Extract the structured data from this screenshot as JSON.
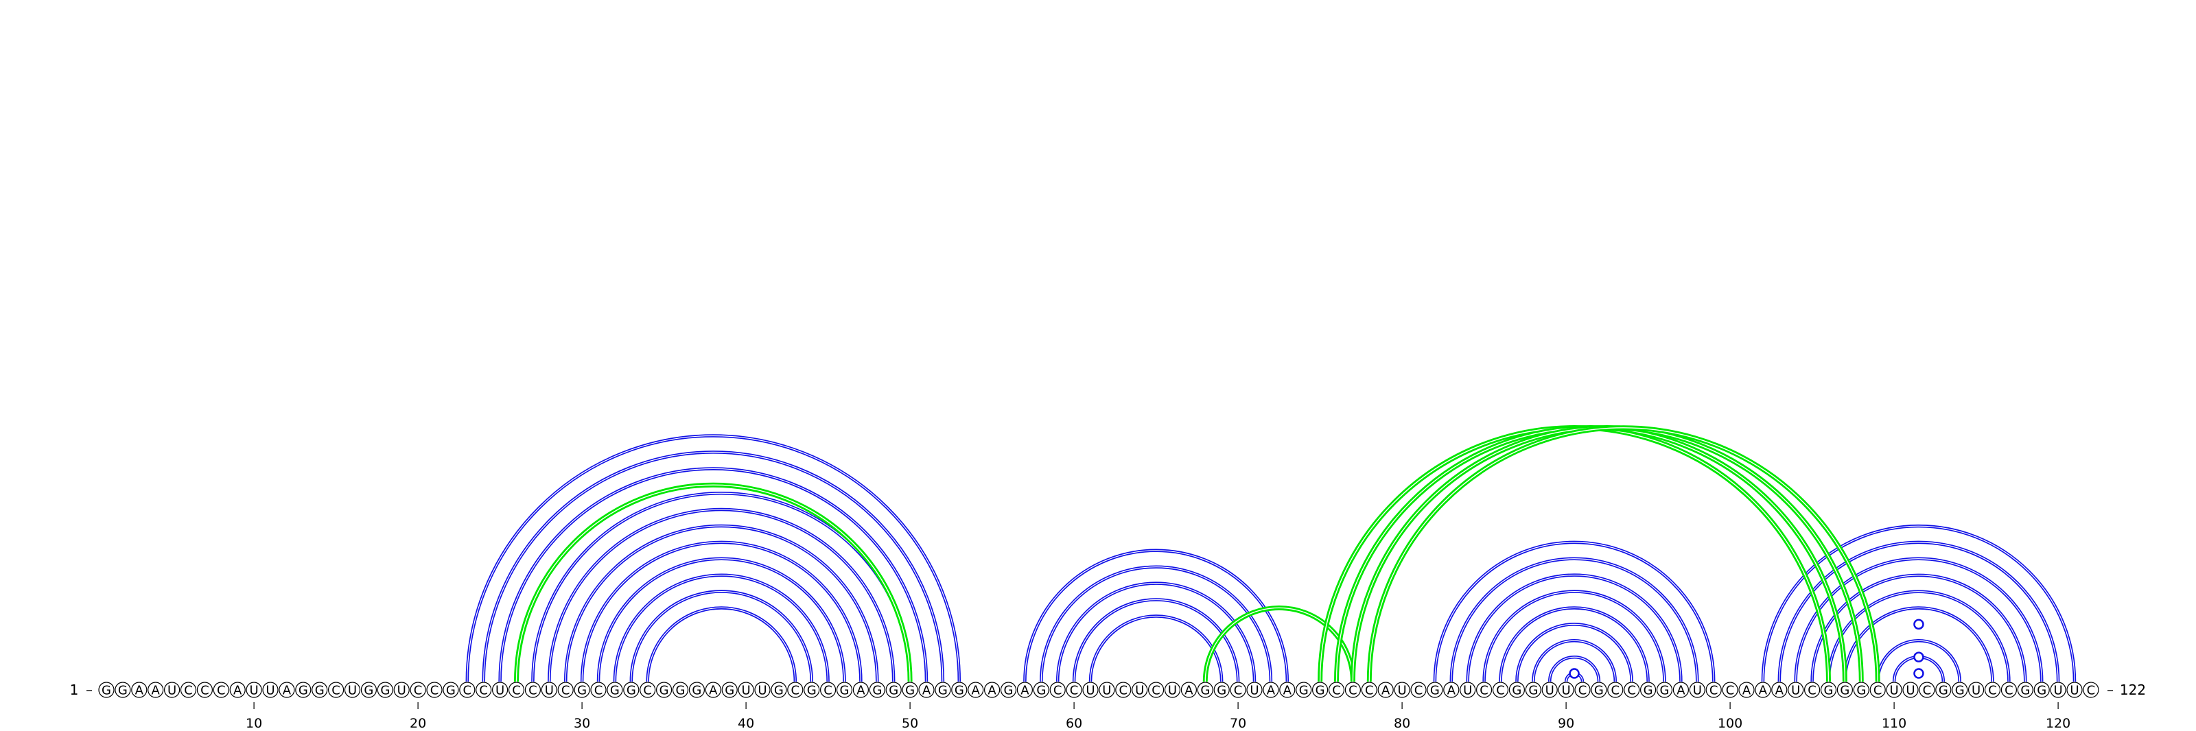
{
  "sequence": "GGAAUCCCAUUAGGCUGGUCCGCCUCCUCGCGGCGGGAGUUGCGCGAGGGAGGAAGAGCCUUCUCUAGGCUAAGGCCCAUCGAUCCGGUUCGCCGGAUCCAAAUCGGGCUUCGGUCCGGUUC",
  "start_label": "1",
  "end_label": "122",
  "ticks": [
    10,
    20,
    30,
    40,
    50,
    60,
    70,
    80,
    90,
    100,
    110,
    120
  ],
  "colors": {
    "pair": "#1010e6",
    "pseudoknot": "#00e600",
    "nucleotide_fill": "#ffffff",
    "outline": "#000000"
  },
  "pairs": [
    [
      23,
      53
    ],
    [
      24,
      52
    ],
    [
      25,
      51
    ],
    [
      27,
      50
    ],
    [
      28,
      49
    ],
    [
      29,
      48
    ],
    [
      30,
      47
    ],
    [
      31,
      46
    ],
    [
      32,
      45
    ],
    [
      33,
      44
    ],
    [
      34,
      43
    ],
    [
      57,
      73
    ],
    [
      58,
      72
    ],
    [
      59,
      71
    ],
    [
      60,
      70
    ],
    [
      61,
      69
    ],
    [
      82,
      99
    ],
    [
      83,
      98
    ],
    [
      84,
      97
    ],
    [
      85,
      96
    ],
    [
      86,
      95
    ],
    [
      87,
      94
    ],
    [
      88,
      93
    ],
    [
      89,
      92
    ],
    [
      90,
      91
    ],
    [
      102,
      121
    ],
    [
      103,
      120
    ],
    [
      104,
      119
    ],
    [
      105,
      118
    ],
    [
      106,
      117
    ],
    [
      107,
      116
    ],
    [
      109,
      114
    ],
    [
      110,
      113
    ]
  ],
  "pseudoknot_pairs": [
    [
      26,
      50
    ],
    [
      68,
      77
    ],
    [
      75,
      106
    ],
    [
      76,
      107
    ],
    [
      77,
      108
    ],
    [
      78,
      109
    ]
  ],
  "loop_markers": [
    {
      "center": 90.5,
      "level": 1
    },
    {
      "center": 111.5,
      "level": 1
    },
    {
      "center": 111.5,
      "level": 2
    },
    {
      "center": 111.5,
      "level": 4
    }
  ]
}
